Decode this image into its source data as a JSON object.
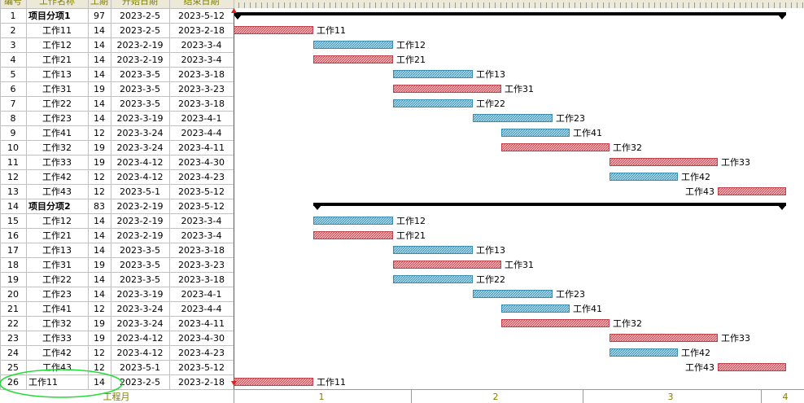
{
  "header": [
    "编号",
    "工作名称",
    "工期",
    "开始日期",
    "结束日期"
  ],
  "rows": [
    [
      1,
      "项目分项1",
      97,
      "2023-2-5",
      "2023-5-12",
      "#000000"
    ],
    [
      2,
      "工作11",
      14,
      "2023-2-5",
      "2023-2-18",
      "#c0404a"
    ],
    [
      3,
      "工作12",
      14,
      "2023-2-19",
      "2023-3-4",
      "#3a8cb0"
    ],
    [
      4,
      "工作21",
      14,
      "2023-2-19",
      "2023-3-4",
      "#c0404a"
    ],
    [
      5,
      "工作13",
      14,
      "2023-3-5",
      "2023-3-18",
      "#3a8cb0"
    ],
    [
      6,
      "工作31",
      19,
      "2023-3-5",
      "2023-3-23",
      "#c0404a"
    ],
    [
      7,
      "工作22",
      14,
      "2023-3-5",
      "2023-3-18",
      "#3a8cb0"
    ],
    [
      8,
      "工作23",
      14,
      "2023-3-19",
      "2023-4-1",
      "#3a8cb0"
    ],
    [
      9,
      "工作41",
      12,
      "2023-3-24",
      "2023-4-4",
      "#3a8cb0"
    ],
    [
      10,
      "工作32",
      19,
      "2023-3-24",
      "2023-4-11",
      "#c0404a"
    ],
    [
      11,
      "工作33",
      19,
      "2023-4-12",
      "2023-4-30",
      "#c0404a"
    ],
    [
      12,
      "工作42",
      12,
      "2023-4-12",
      "2023-4-23",
      "#3a8cb0"
    ],
    [
      13,
      "工作43",
      12,
      "2023-5-1",
      "2023-5-12",
      "#c0404a"
    ],
    [
      14,
      "项目分项2",
      83,
      "2023-2-19",
      "2023-5-12",
      "#000000"
    ],
    [
      15,
      "工作12",
      14,
      "2023-2-19",
      "2023-3-4",
      "#3a8cb0"
    ],
    [
      16,
      "工作21",
      14,
      "2023-2-19",
      "2023-3-4",
      "#c0404a"
    ],
    [
      17,
      "工作13",
      14,
      "2023-3-5",
      "2023-3-18",
      "#3a8cb0"
    ],
    [
      18,
      "工作31",
      19,
      "2023-3-5",
      "2023-3-23",
      "#c0404a"
    ],
    [
      19,
      "工作22",
      14,
      "2023-3-5",
      "2023-3-18",
      "#3a8cb0"
    ],
    [
      20,
      "工作23",
      14,
      "2023-3-19",
      "2023-4-1",
      "#3a8cb0"
    ],
    [
      21,
      "工作41",
      12,
      "2023-3-24",
      "2023-4-4",
      "#3a8cb0"
    ],
    [
      22,
      "工作32",
      19,
      "2023-3-24",
      "2023-4-11",
      "#c0404a"
    ],
    [
      23,
      "工作33",
      19,
      "2023-4-12",
      "2023-4-30",
      "#c0404a"
    ],
    [
      24,
      "工作42",
      12,
      "2023-4-12",
      "2023-4-23",
      "#3a8cb0"
    ],
    [
      25,
      "工作43",
      12,
      "2023-5-1",
      "2023-5-12",
      "#c0404a"
    ],
    [
      26,
      "工作11",
      14,
      "2023-2-5",
      "2023-2-18",
      "#c0404a"
    ]
  ],
  "footer": {
    "label": "工程月",
    "months": [
      1,
      2,
      3,
      4
    ]
  }
}
